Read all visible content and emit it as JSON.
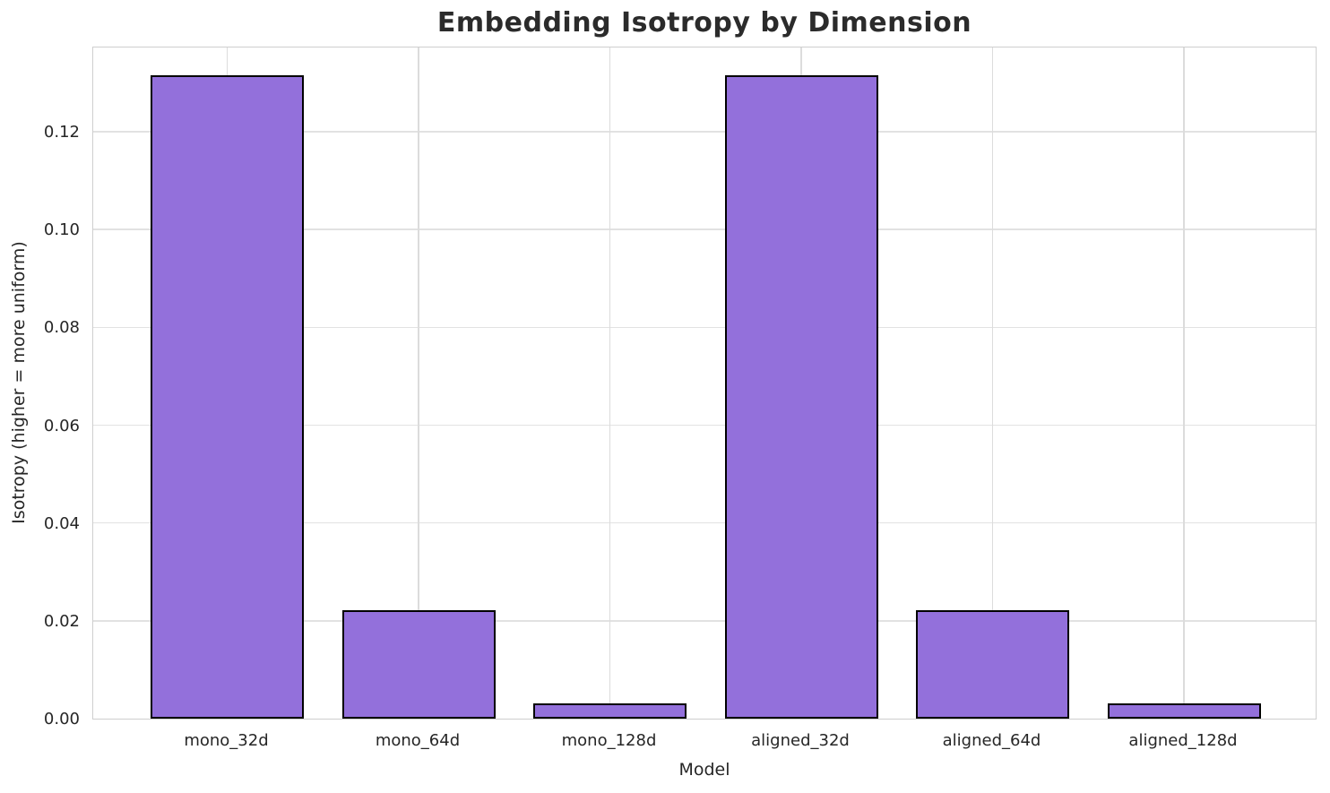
{
  "chart_data": {
    "type": "bar",
    "title": "Embedding Isotropy by Dimension",
    "xlabel": "Model",
    "ylabel": "Isotropy (higher = more uniform)",
    "categories": [
      "mono_32d",
      "mono_64d",
      "mono_128d",
      "aligned_32d",
      "aligned_64d",
      "aligned_128d"
    ],
    "values": [
      0.1315,
      0.0222,
      0.0031,
      0.1315,
      0.0222,
      0.0031
    ],
    "ylim": [
      0,
      0.1376
    ],
    "yticks": [
      0.0,
      0.02,
      0.04,
      0.06,
      0.08,
      0.1,
      0.12
    ],
    "ytick_labels": [
      "0.00",
      "0.02",
      "0.04",
      "0.06",
      "0.08",
      "0.10",
      "0.12"
    ],
    "grid": true,
    "legend": "none",
    "bar_color": "#9370DB",
    "bar_edge_color": "#000000",
    "gridline_color": "#e2e2e2",
    "spine_color": "#cfcfcf",
    "title_color": "#2b2b2b",
    "tick_color": "#262626",
    "background_color": "#ffffff"
  }
}
